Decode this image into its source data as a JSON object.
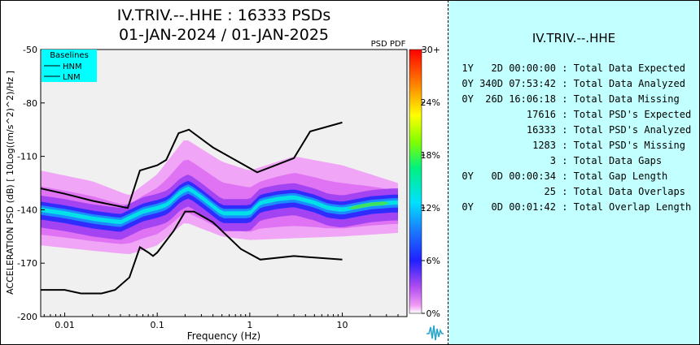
{
  "title_line1": "IV.TRIV.--.HHE : 16333 PSDs",
  "title_line2": "01-JAN-2024 / 01-JAN-2025",
  "colorbar_title": "PSD PDF",
  "colorbar_ticks": [
    "30+",
    "24%",
    "18%",
    "12%",
    "6%",
    "0%"
  ],
  "legend": {
    "title": "Baselines",
    "items": [
      "HNM",
      "LNM"
    ]
  },
  "stats": {
    "title": "IV.TRIV.--.HHE",
    "rows": [
      {
        "value": "1Y   2D 00:00:00",
        "label": " : Total Data Expected"
      },
      {
        "value": "0Y 340D 07:53:42",
        "label": " : Total Data Analyzed"
      },
      {
        "value": "0Y  26D 16:06:18",
        "label": " : Total Data Missing"
      },
      {
        "value": "17616",
        "label": " : Total PSD's Expected"
      },
      {
        "value": "16333",
        "label": " : Total PSD's Analyzed"
      },
      {
        "value": "1283",
        "label": " : Total PSD's Missing"
      },
      {
        "value": "3",
        "label": " : Total Data Gaps"
      },
      {
        "value": "0Y   0D 00:00:34",
        "label": " : Total Gap Length"
      },
      {
        "value": "25",
        "label": " : Total Data Overlaps"
      },
      {
        "value": "0Y   0D 00:01:42",
        "label": " : Total Overlap Length"
      }
    ]
  },
  "chart_data": {
    "type": "heatmap",
    "title": "IV.TRIV.--.HHE : 16333 PSDs  01-JAN-2024 / 01-JAN-2025",
    "xlabel": "Frequency (Hz)",
    "ylabel": "ACCELERATION PSD (dB) [ 10Log((m/s^2)^2)/Hz ]",
    "xscale": "log",
    "xlim": [
      0.0055,
      50
    ],
    "ylim": [
      -200,
      -50
    ],
    "x_ticks": [
      0.01,
      0.1,
      1,
      10
    ],
    "x_tick_labels": [
      "0.01",
      "0.1",
      "1",
      "10"
    ],
    "y_ticks": [
      -50,
      -80,
      -110,
      -140,
      -170,
      -200
    ],
    "legend_position": "top-left",
    "colorbar_range_percent": [
      0,
      30
    ],
    "series": [
      {
        "name": "HNM",
        "points": [
          [
            0.0055,
            -128
          ],
          [
            0.01,
            -131
          ],
          [
            0.02,
            -135
          ],
          [
            0.048,
            -139
          ],
          [
            0.065,
            -118
          ],
          [
            0.1,
            -115
          ],
          [
            0.125,
            -112
          ],
          [
            0.17,
            -97
          ],
          [
            0.22,
            -95
          ],
          [
            0.4,
            -105
          ],
          [
            1.2,
            -119
          ],
          [
            3,
            -111
          ],
          [
            4.5,
            -96
          ],
          [
            10,
            -91
          ]
        ]
      },
      {
        "name": "LNM",
        "points": [
          [
            0.0055,
            -185
          ],
          [
            0.01,
            -185
          ],
          [
            0.015,
            -187
          ],
          [
            0.025,
            -187
          ],
          [
            0.035,
            -185
          ],
          [
            0.05,
            -178
          ],
          [
            0.065,
            -161
          ],
          [
            0.08,
            -164
          ],
          [
            0.09,
            -166
          ],
          [
            0.1,
            -164
          ],
          [
            0.15,
            -152
          ],
          [
            0.2,
            -141
          ],
          [
            0.25,
            -141
          ],
          [
            0.4,
            -147
          ],
          [
            0.8,
            -162
          ],
          [
            1.3,
            -168
          ],
          [
            3,
            -166
          ],
          [
            10,
            -168
          ]
        ]
      }
    ],
    "pdf_mode_trace": [
      [
        0.0055,
        -140
      ],
      [
        0.01,
        -142
      ],
      [
        0.02,
        -145
      ],
      [
        0.04,
        -147
      ],
      [
        0.07,
        -141
      ],
      [
        0.1,
        -139
      ],
      [
        0.13,
        -137
      ],
      [
        0.18,
        -130
      ],
      [
        0.22,
        -128
      ],
      [
        0.3,
        -133
      ],
      [
        0.5,
        -142
      ],
      [
        1,
        -142
      ],
      [
        1.3,
        -136
      ],
      [
        2,
        -134
      ],
      [
        3,
        -133
      ],
      [
        5,
        -136
      ],
      [
        7,
        -139
      ],
      [
        10,
        -140
      ],
      [
        20,
        -137
      ],
      [
        35,
        -136
      ]
    ],
    "pdf_spread_upper": [
      [
        0.0055,
        -118
      ],
      [
        0.02,
        -124
      ],
      [
        0.05,
        -132
      ],
      [
        0.1,
        -120
      ],
      [
        0.2,
        -100
      ],
      [
        0.5,
        -113
      ],
      [
        1,
        -118
      ],
      [
        3,
        -110
      ],
      [
        10,
        -115
      ],
      [
        40,
        -125
      ]
    ],
    "pdf_spread_lower": [
      [
        0.0055,
        -160
      ],
      [
        0.02,
        -163
      ],
      [
        0.05,
        -165
      ],
      [
        0.1,
        -160
      ],
      [
        0.2,
        -147
      ],
      [
        0.5,
        -155
      ],
      [
        1,
        -157
      ],
      [
        3,
        -156
      ],
      [
        10,
        -155
      ],
      [
        40,
        -153
      ]
    ]
  }
}
